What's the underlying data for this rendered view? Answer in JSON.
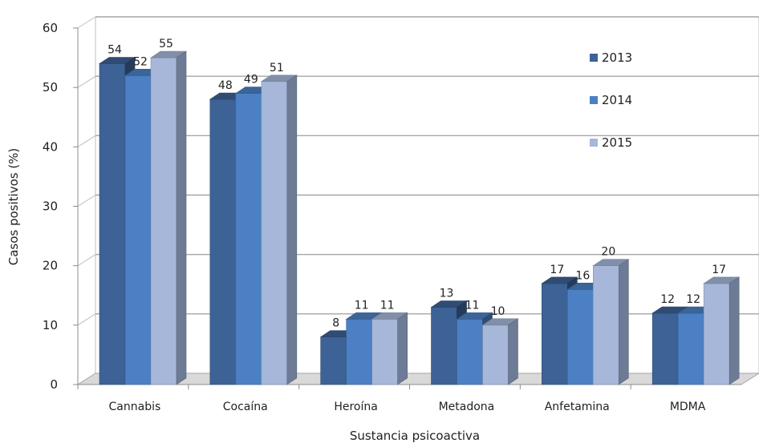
{
  "chart_data": {
    "type": "bar",
    "style": "3d-clustered-column",
    "categories": [
      "Cannabis",
      "Cocaína",
      "Heroína",
      "Metadona",
      "Anfetamina",
      "MDMA"
    ],
    "series": [
      {
        "name": "2013",
        "values": [
          54,
          48,
          8,
          13,
          17,
          12
        ],
        "color": "#3d6296"
      },
      {
        "name": "2014",
        "values": [
          52,
          49,
          11,
          11,
          16,
          12
        ],
        "color": "#4c80c4"
      },
      {
        "name": "2015",
        "values": [
          55,
          51,
          11,
          10,
          20,
          17
        ],
        "color": "#a6b7d9"
      }
    ],
    "data_labels": [
      [
        "54",
        "48",
        "8",
        "13",
        "17",
        "12"
      ],
      [
        "52",
        "49",
        "11",
        "11",
        "16",
        "12"
      ],
      [
        "55",
        "51",
        "11",
        "10",
        "20",
        "17"
      ]
    ],
    "title": "",
    "xlabel": "Sustancia psicoactiva",
    "ylabel": "Casos positivos (%)",
    "ylim": [
      0,
      60
    ],
    "yticks": [
      0,
      10,
      20,
      30,
      40,
      50,
      60
    ],
    "grid": true,
    "legend_position": "right"
  }
}
